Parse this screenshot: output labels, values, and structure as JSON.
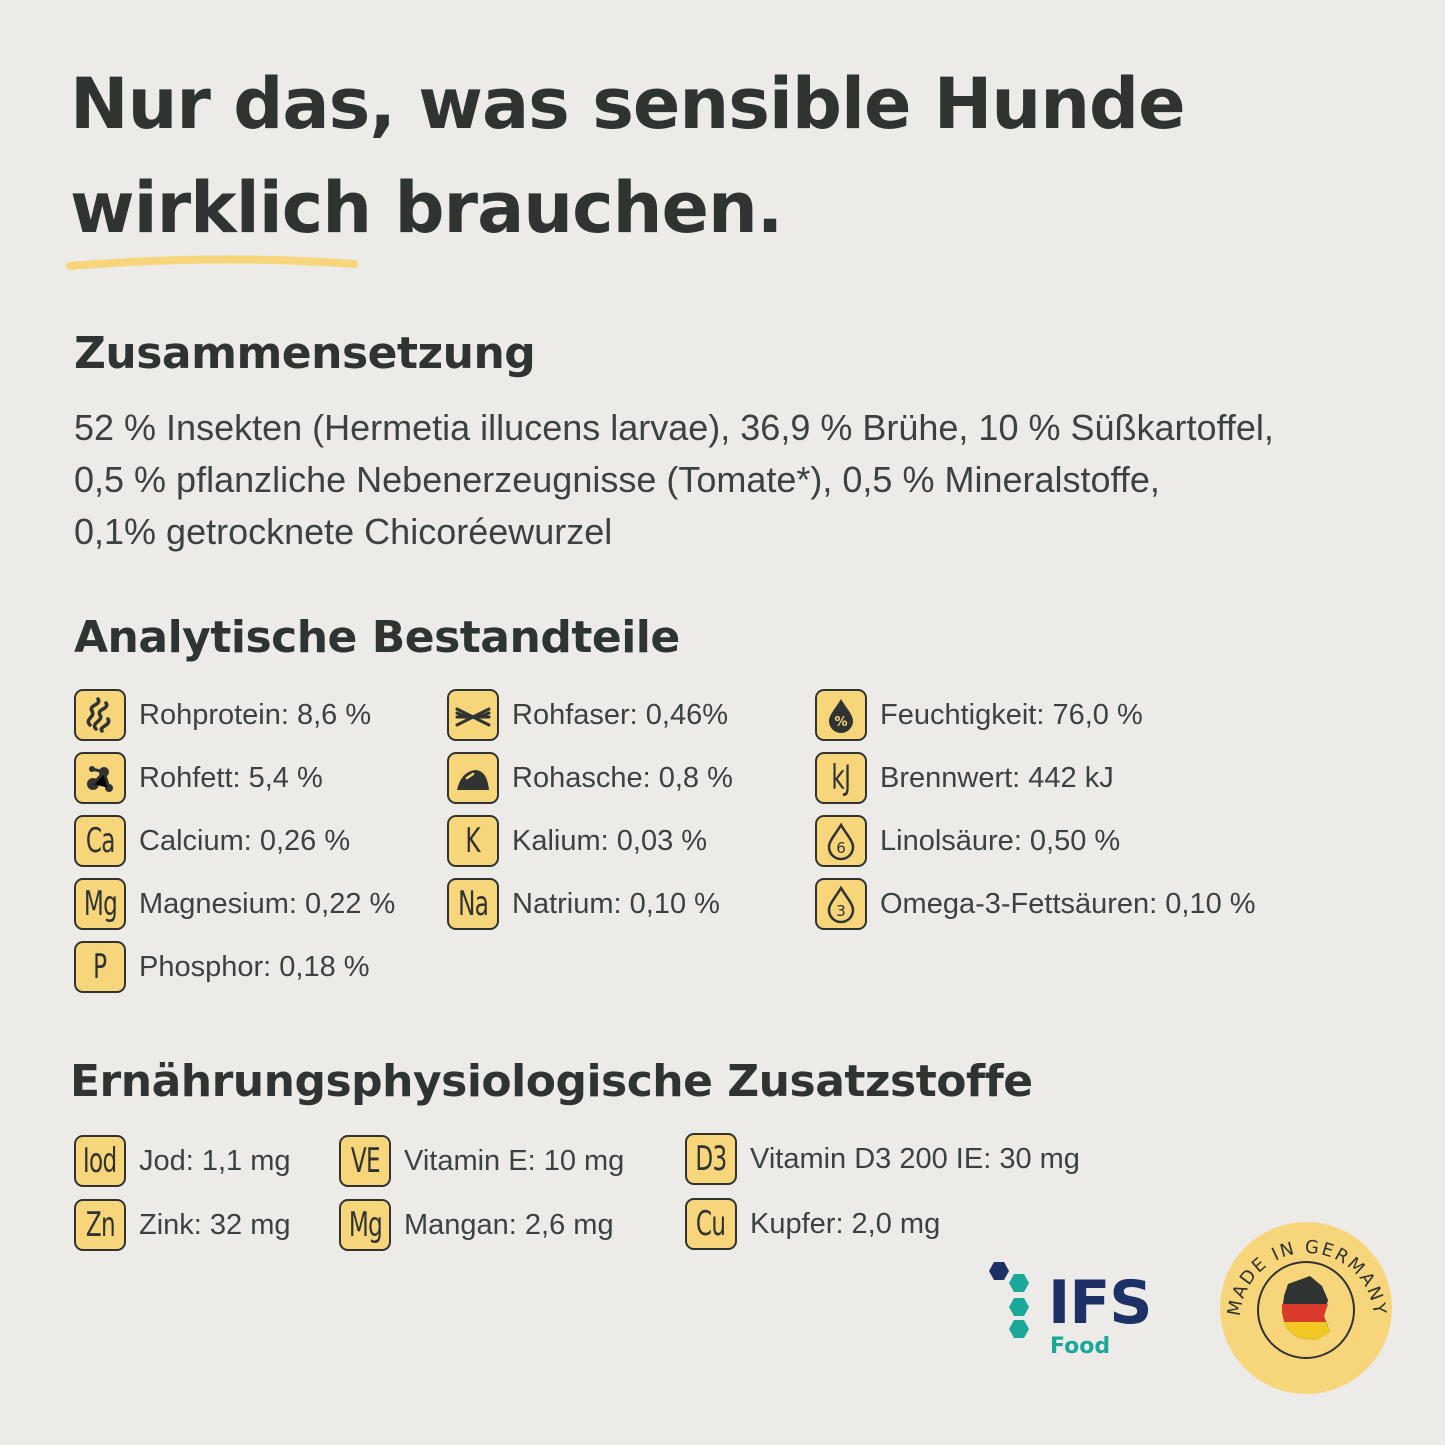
{
  "headline": {
    "line1": "Nur das, was sensible Hunde",
    "line2_highlight": "wirklich",
    "line2_rest": "brauchen."
  },
  "composition": {
    "title": "Zusammensetzung",
    "lines": [
      "52 % Insekten (Hermetia illucens larvae), 36,9 % Brühe, 10 % Süßkartoffel,",
      "0,5 % pflanzliche Nebenerzeugnisse (Tomate*), 0,5 % Mineralstoffe,",
      "0,1% getrocknete Chicoréewurzel"
    ]
  },
  "analytics": {
    "title": "Analytische Bestandteile",
    "items": [
      {
        "icon": "protein-spiral-icon",
        "label": "Rohprotein: 8,6 %"
      },
      {
        "icon": "fiber-icon",
        "label": "Rohfaser: 0,46%"
      },
      {
        "icon": "moisture-drop-percent-icon",
        "label": "Feuchtigkeit: 76,0 %"
      },
      {
        "icon": "fat-molecule-icon",
        "label": "Rohfett: 5,4 %"
      },
      {
        "icon": "ash-pile-icon",
        "label": "Rohasche: 0,8 %"
      },
      {
        "icon_text": "kJ",
        "label": "Brennwert: 442 kJ"
      },
      {
        "icon_text": "Ca",
        "label": "Calcium: 0,26 %"
      },
      {
        "icon_text": "K",
        "label": "Kalium: 0,03 %"
      },
      {
        "icon": "omega-6-drop-icon",
        "icon_text": "6",
        "label": "Linolsäure: 0,50 %"
      },
      {
        "icon_text": "Mg",
        "label": "Magnesium: 0,22 %"
      },
      {
        "icon_text": "Na",
        "label": "Natrium: 0,10 %"
      },
      {
        "icon": "omega-3-drop-icon",
        "icon_text": "3",
        "label": "Omega-3-Fettsäuren: 0,10 %"
      },
      {
        "icon_text": "P",
        "label": "Phosphor: 0,18 %"
      }
    ]
  },
  "additives": {
    "title": "Ernährungsphysiologische Zusatzstoffe",
    "items": [
      {
        "icon_text": "Iod",
        "label": "Jod: 1,1 mg"
      },
      {
        "icon_text": "VE",
        "label": "Vitamin E: 10 mg"
      },
      {
        "icon_text": "D3",
        "label": "Vitamin D3 200 IE: 30 mg"
      },
      {
        "icon_text": "Zn",
        "label": "Zink: 32 mg"
      },
      {
        "icon_text": "Mg",
        "label": "Mangan: 2,6 mg"
      },
      {
        "icon_text": "Cu",
        "label": "Kupfer: 2,0 mg"
      }
    ]
  },
  "badges": {
    "ifs_title": "IFS",
    "ifs_sub": "Food",
    "made_in": "MADE IN GERMANY"
  },
  "colors": {
    "background": "#edebe7",
    "text": "#2f3433",
    "accent_yellow": "#f7d57a",
    "ifs_blue": "#1d3167",
    "ifs_teal": "#1aa89a"
  }
}
